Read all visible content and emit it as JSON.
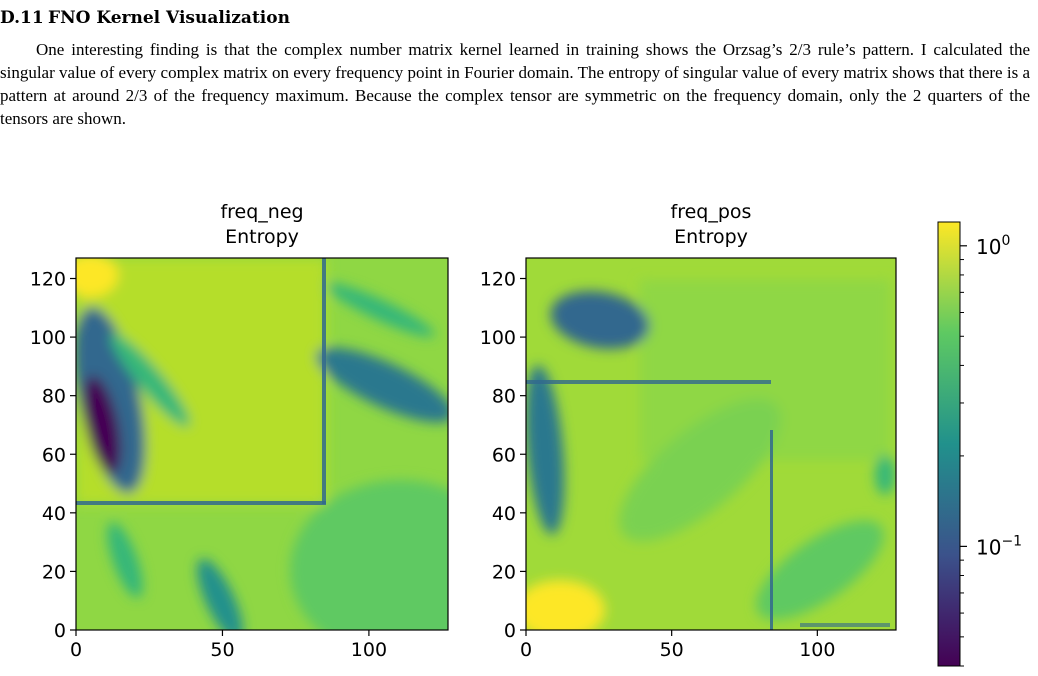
{
  "section": {
    "number": "D.11",
    "title": "FNO Kernel Visualization"
  },
  "paragraph": "One interesting finding is that the complex number matrix kernel learned in training shows the Orzsag’s 2/3 rule’s pattern. I calculated the singular value of every complex matrix on every frequency point in Fourier domain. The entropy of singular value of every matrix shows that there is a pattern at around 2/3 of the frequency maximum. Because the complex tensor are symmetric on the frequency domain, only the 2 quarters of the tensors are shown.",
  "figure": {
    "colormap": "viridis",
    "colormap_stops": [
      "#440154",
      "#3b528b",
      "#21918c",
      "#5ec962",
      "#fde725"
    ],
    "panels": [
      {
        "name": "freq_neg",
        "title_line1": "freq_neg",
        "title_line2": "Entropy",
        "xlim": [
          0,
          127
        ],
        "ylim": [
          0,
          127
        ],
        "xticks": [
          0,
          50,
          100
        ],
        "yticks": [
          0,
          20,
          40,
          60,
          80,
          100,
          120
        ],
        "features": {
          "horizontal_line_y": 43,
          "vertical_line_x": 85
        }
      },
      {
        "name": "freq_pos",
        "title_line1": "freq_pos",
        "title_line2": "Entropy",
        "xlim": [
          0,
          127
        ],
        "ylim": [
          0,
          127
        ],
        "xticks": [
          0,
          50,
          100
        ],
        "yticks": [
          0,
          20,
          40,
          60,
          80,
          100,
          120
        ],
        "features": {
          "horizontal_line_y": 85,
          "vertical_line_x": 85
        }
      }
    ],
    "colorbar": {
      "scale": "log",
      "range": [
        0.04,
        1.2
      ],
      "ticks": [
        {
          "base": "10",
          "exp": "0",
          "value": 1
        },
        {
          "base": "10",
          "exp": "−1",
          "value": 0.1
        }
      ]
    }
  }
}
